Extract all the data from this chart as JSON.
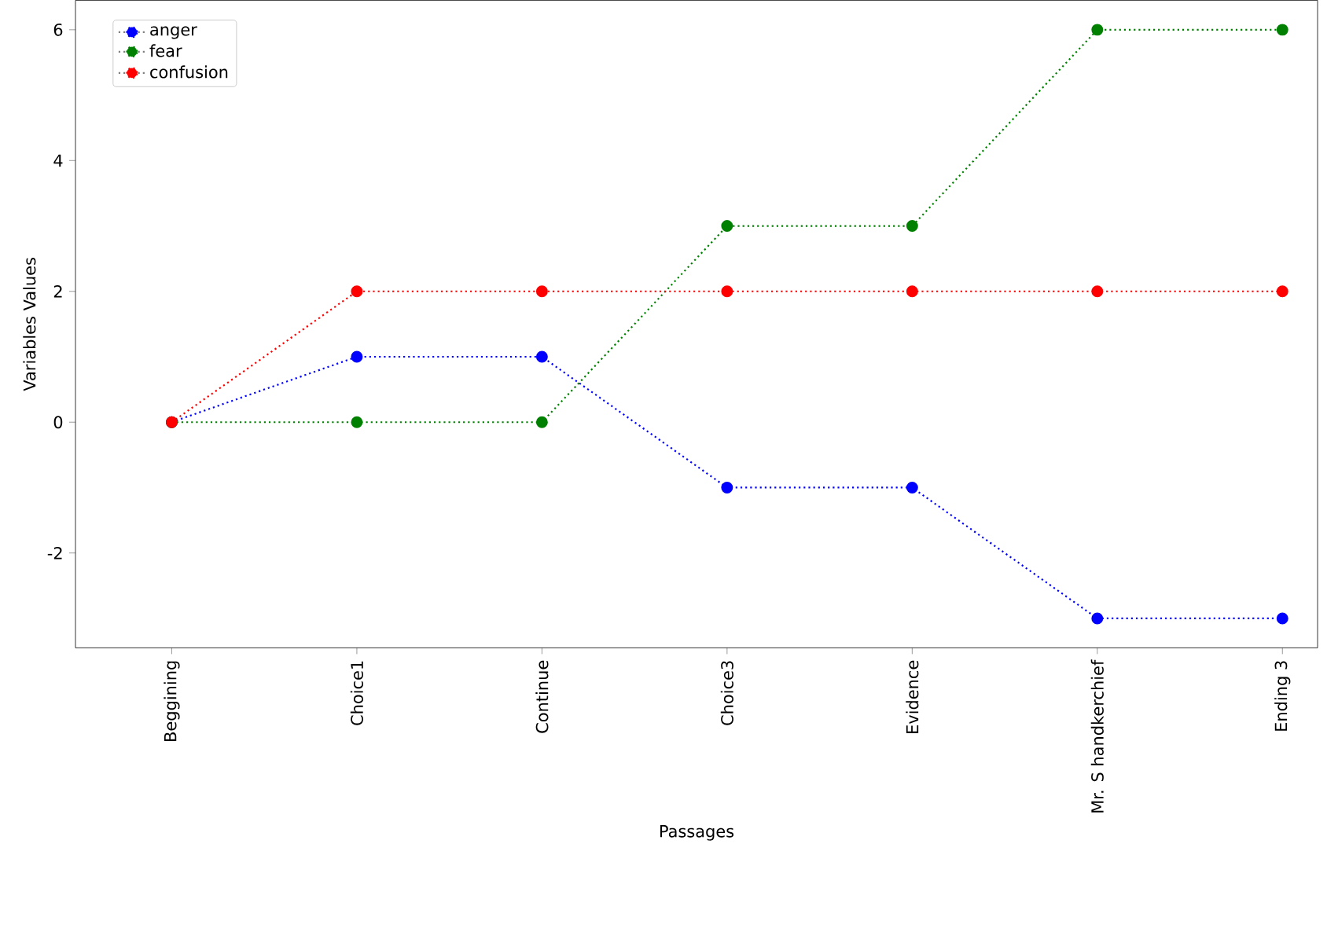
{
  "chart_data": {
    "type": "line",
    "xlabel": "Passages",
    "ylabel": "Variables Values",
    "categories": [
      "Beggining",
      "Choice1",
      "Continue",
      "Choice3",
      "Evidence",
      "Mr. S handkerchief",
      "Ending 3"
    ],
    "series": [
      {
        "name": "anger",
        "color": "#0000ff",
        "values": [
          0,
          1,
          1,
          -1,
          -1,
          -3,
          -3
        ]
      },
      {
        "name": "fear",
        "color": "#008000",
        "values": [
          0,
          0,
          0,
          3,
          3,
          6,
          6
        ]
      },
      {
        "name": "confusion",
        "color": "#ff0000",
        "values": [
          0,
          2,
          2,
          2,
          2,
          2,
          2
        ]
      }
    ],
    "ylim": [
      -3.45,
      6.45
    ],
    "yticks": [
      -2,
      0,
      2,
      4,
      6
    ],
    "legend": "top left",
    "marker": "circle",
    "line_style": "dotted",
    "grid": false
  }
}
